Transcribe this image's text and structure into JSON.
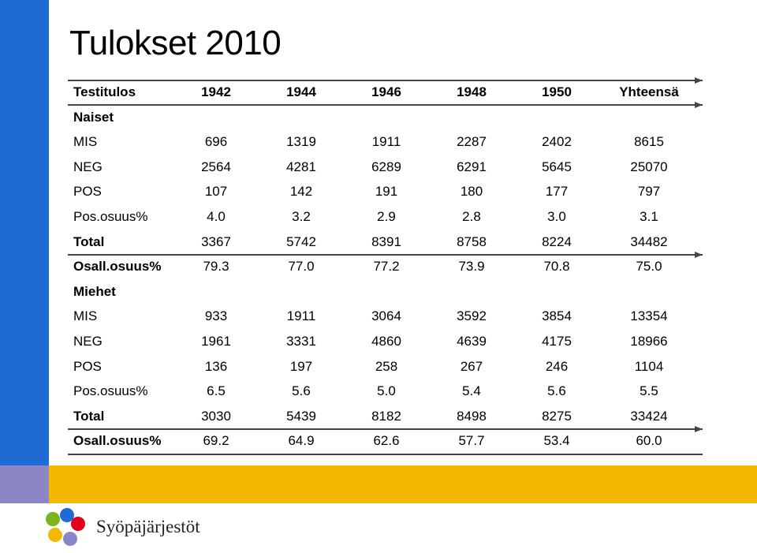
{
  "title": "Tulokset 2010",
  "header": {
    "label": "Testitulos",
    "cols": [
      "1942",
      "1944",
      "1946",
      "1948",
      "1950",
      "Yhteensä"
    ]
  },
  "naiset": {
    "section": "Naiset",
    "rows": [
      {
        "label": "MIS",
        "values": [
          "696",
          "1319",
          "1911",
          "2287",
          "2402",
          "8615"
        ]
      },
      {
        "label": "NEG",
        "values": [
          "2564",
          "4281",
          "6289",
          "6291",
          "5645",
          "25070"
        ]
      },
      {
        "label": "POS",
        "values": [
          "107",
          "142",
          "191",
          "180",
          "177",
          "797"
        ]
      },
      {
        "label": "Pos.osuus%",
        "values": [
          "4.0",
          "3.2",
          "2.9",
          "2.8",
          "3.0",
          "3.1"
        ]
      },
      {
        "label": "Total",
        "values": [
          "3367",
          "5742",
          "8391",
          "8758",
          "8224",
          "34482"
        ]
      },
      {
        "label": "Osall.osuus%",
        "values": [
          "79.3",
          "77.0",
          "77.2",
          "73.9",
          "70.8",
          "75.0"
        ]
      }
    ]
  },
  "miehet": {
    "section": "Miehet",
    "rows": [
      {
        "label": "MIS",
        "values": [
          "933",
          "1911",
          "3064",
          "3592",
          "3854",
          "13354"
        ]
      },
      {
        "label": "NEG",
        "values": [
          "1961",
          "3331",
          "4860",
          "4639",
          "4175",
          "18966"
        ]
      },
      {
        "label": "POS",
        "values": [
          "136",
          "197",
          "258",
          "267",
          "246",
          "1104"
        ]
      },
      {
        "label": "Pos.osuus%",
        "values": [
          "6.5",
          "5.6",
          "5.0",
          "5.4",
          "5.6",
          "5.5"
        ]
      },
      {
        "label": "Total",
        "values": [
          "3030",
          "5439",
          "8182",
          "8498",
          "8275",
          "33424"
        ]
      },
      {
        "label": "Osall.osuus%",
        "values": [
          "69.2",
          "64.9",
          "62.6",
          "57.7",
          "53.4",
          "60.0"
        ]
      }
    ]
  },
  "logo": {
    "text": "Syöpäjärjestöt",
    "colors": [
      "#e2001a",
      "#f5b800",
      "#1f6bd6",
      "#7ab51d",
      "#8b87c6"
    ]
  },
  "colors": {
    "blue_bar": "#1f6bd6",
    "yellow_band": "#f5b800",
    "purple_block": "#8b87c6"
  }
}
